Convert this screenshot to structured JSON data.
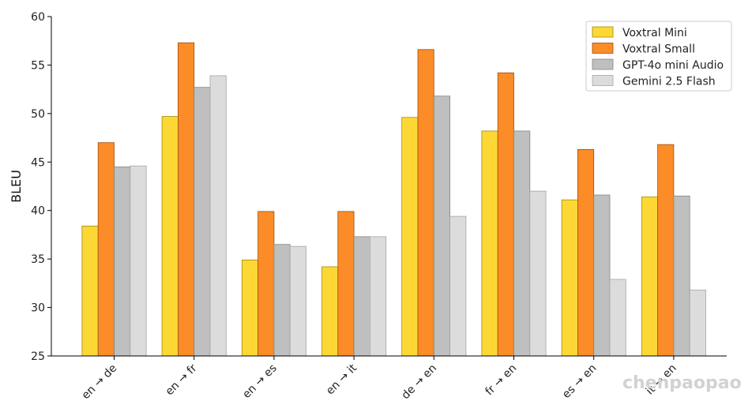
{
  "chart_data": {
    "type": "bar",
    "ylabel": "BLEU",
    "xlabel": "",
    "title": "",
    "ylim": [
      25,
      60
    ],
    "yticks": [
      25,
      30,
      35,
      40,
      45,
      50,
      55,
      60
    ],
    "categories": [
      "en → de",
      "en → fr",
      "en → es",
      "en → it",
      "de → en",
      "fr → en",
      "es → en",
      "it → en"
    ],
    "series": [
      {
        "name": "Voxtral Mini",
        "color": "#fdd835",
        "edge": "#a08a10",
        "values": [
          38.4,
          49.7,
          34.9,
          34.2,
          49.6,
          48.2,
          41.1,
          41.4
        ]
      },
      {
        "name": "Voxtral Small",
        "color": "#fb8c27",
        "edge": "#a04e10",
        "values": [
          47.0,
          57.3,
          39.9,
          39.9,
          56.6,
          54.2,
          46.3,
          46.8
        ]
      },
      {
        "name": "GPT-4o mini Audio",
        "color": "#bfbfbf",
        "edge": "#858585",
        "values": [
          44.5,
          52.7,
          36.5,
          37.3,
          51.8,
          48.2,
          41.6,
          41.5
        ]
      },
      {
        "name": "Gemini 2.5 Flash",
        "color": "#dcdcdc",
        "edge": "#a5a5a5",
        "values": [
          44.6,
          53.9,
          36.3,
          37.3,
          39.4,
          42.0,
          32.9,
          31.8
        ]
      }
    ],
    "legend_position": "top-right",
    "grid": false
  },
  "watermark": "chenpaopao"
}
